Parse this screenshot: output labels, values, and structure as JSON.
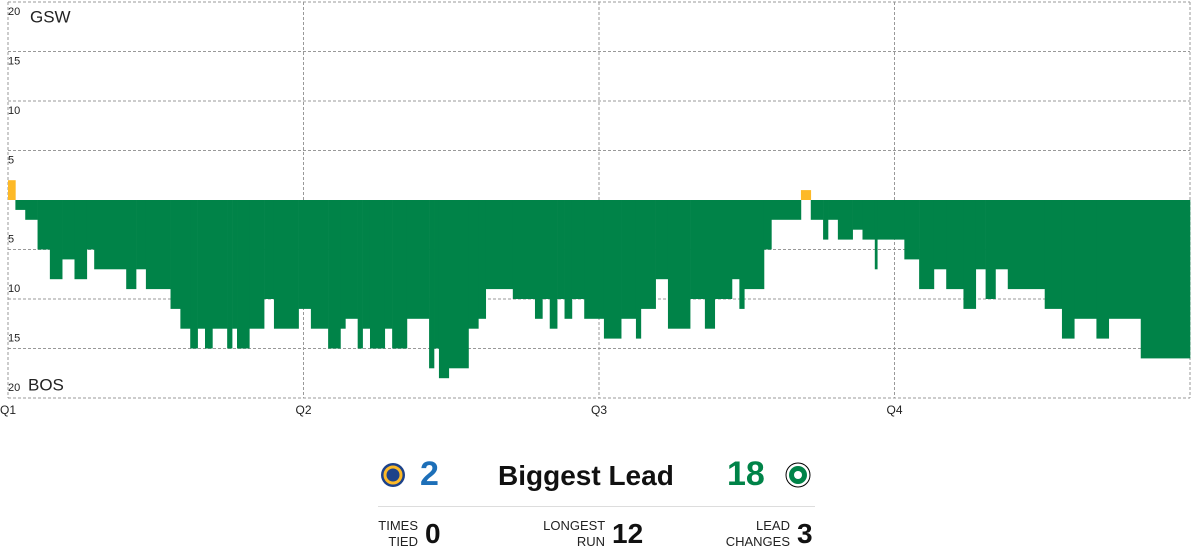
{
  "chart_data": {
    "type": "game-flow",
    "teams": [
      {
        "name": "GSW",
        "color": "#fdb927"
      },
      {
        "name": "BOS",
        "color": "#008348"
      }
    ],
    "x": [
      0,
      0.3,
      0.7,
      1.2,
      1.7,
      2.2,
      2.7,
      3.2,
      3.5,
      4.8,
      5.2,
      5.6,
      6.6,
      7.0,
      7.4,
      7.7,
      8.0,
      8.3,
      8.9,
      9.1,
      9.3,
      9.8,
      10.4,
      10.8,
      11.8,
      12.3,
      13.0,
      13.5,
      13.7,
      14.2,
      14.4,
      14.7,
      15.3,
      15.6,
      16.2,
      17.1,
      17.3,
      17.5,
      17.9,
      18.7,
      19.1,
      19.4,
      20.5,
      21.4,
      21.7,
      22.0,
      22.3,
      22.6,
      22.9,
      23.4,
      24.2,
      24.9,
      25.5,
      25.7,
      26.3,
      26.8,
      27.7,
      28.3,
      28.7,
      29.4,
      29.7,
      29.9,
      30.7,
      31.0,
      32.2,
      32.6,
      33.1,
      33.3,
      33.7,
      34.3,
      34.7,
      35.2,
      35.3,
      36.4,
      37.0,
      37.6,
      38.1,
      38.8,
      39.3,
      39.7,
      40.1,
      40.6,
      42.1,
      42.8,
      43.3,
      44.2,
      44.7,
      46.0
    ],
    "values": [
      2,
      -1,
      -2,
      -5,
      -8,
      -6,
      -8,
      -5,
      -7,
      -9,
      -7,
      -9,
      -11,
      -13,
      -15,
      -13,
      -15,
      -13,
      -15,
      -13,
      -15,
      -13,
      -10,
      -13,
      -11,
      -13,
      -15,
      -13,
      -12,
      -15,
      -13,
      -15,
      -13,
      -15,
      -12,
      -17,
      -15,
      -18,
      -17,
      -13,
      -12,
      -9,
      -10,
      -12,
      -10,
      -13,
      -10,
      -12,
      -10,
      -12,
      -14,
      -12,
      -14,
      -11,
      -8,
      -13,
      -10,
      -13,
      -10,
      -8,
      -11,
      -9,
      -5,
      -2,
      1,
      -2,
      -4,
      -2,
      -4,
      -3,
      -4,
      -7,
      -4,
      -6,
      -9,
      -7,
      -9,
      -11,
      -7,
      -10,
      -7,
      -9,
      -11,
      -14,
      -12,
      -14,
      -12,
      -16
    ],
    "xlim": [
      0,
      48
    ],
    "xticks": [
      {
        "value": 0,
        "label": "Q1"
      },
      {
        "value": 12,
        "label": "Q2"
      },
      {
        "value": 24,
        "label": "Q3"
      },
      {
        "value": 36,
        "label": "Q4"
      }
    ],
    "ylim": [
      -20,
      20
    ],
    "yticks": [
      20,
      15,
      10,
      5,
      {
        "value": -5,
        "label": "5"
      },
      {
        "value": -10,
        "label": "10"
      },
      {
        "value": -15,
        "label": "15"
      },
      {
        "value": -20,
        "label": "20"
      }
    ],
    "grid": true
  },
  "summary": {
    "biggest_lead": {
      "label": "Biggest Lead",
      "values": [
        2,
        18
      ],
      "colors": [
        "#1d6fb8",
        "#008348"
      ]
    },
    "stats": [
      {
        "label": "TIMES TIED",
        "value": 0
      },
      {
        "label": "LONGEST RUN",
        "value": 12
      },
      {
        "label": "LEAD CHANGES",
        "value": 3
      }
    ]
  }
}
